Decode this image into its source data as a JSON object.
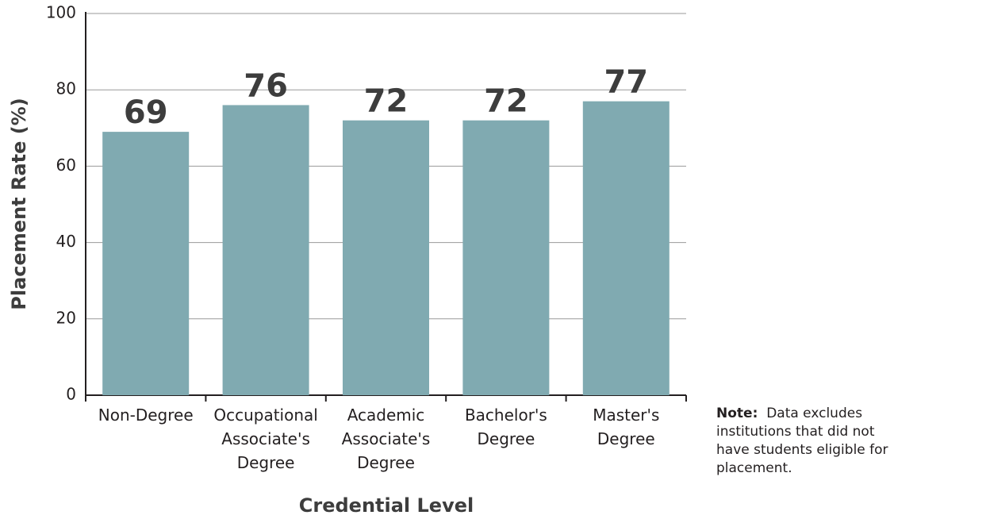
{
  "chart_data": {
    "type": "bar",
    "x_label": "Credential Level",
    "y_label": "Placement Rate (%)",
    "categories": [
      "Non-Degree",
      "Occupational Associate's Degree",
      "Academic Associate's Degree",
      "Bachelor's Degree",
      "Master's Degree"
    ],
    "values": [
      69,
      76,
      72,
      72,
      77
    ],
    "color": "#80aab1",
    "ylim": [
      0,
      100
    ],
    "yticks": [
      0,
      20,
      40,
      60,
      80,
      100
    ],
    "grid": true,
    "note_label": "Note:",
    "note": "Data excludes institutions that did not have students eligible for placement."
  }
}
